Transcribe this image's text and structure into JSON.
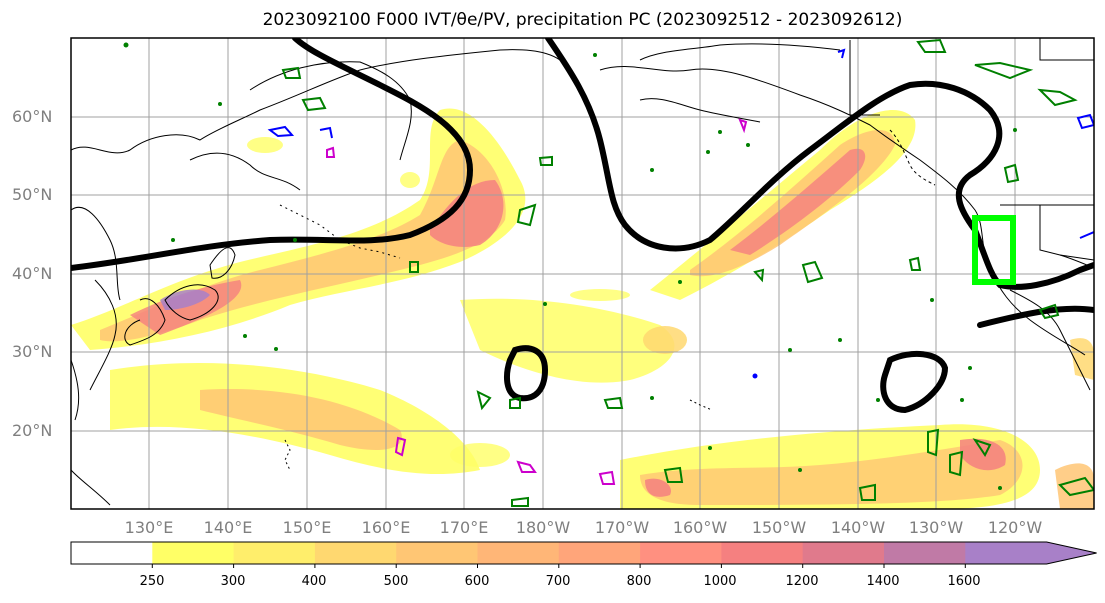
{
  "title": "2023092100 F000 IVT/θe/PV, precipitation PC (2023092512 - 2023092612)",
  "map": {
    "lat_labels": [
      "60°N",
      "50°N",
      "40°N",
      "30°N",
      "20°N"
    ],
    "lon_labels": [
      "130°E",
      "140°E",
      "150°E",
      "160°E",
      "170°E",
      "180°W",
      "170°W",
      "160°W",
      "150°W",
      "140°W",
      "130°W",
      "120°W"
    ]
  },
  "colorbar": {
    "ticks": [
      "250",
      "300",
      "400",
      "500",
      "600",
      "700",
      "800",
      "1000",
      "1200",
      "1400",
      "1600"
    ],
    "colors": [
      "#ffff66",
      "#ffee6b",
      "#ffd870",
      "#ffc674",
      "#ffb677",
      "#ffa57a",
      "#ff9080",
      "#f58080",
      "#e07a8c",
      "#c07aa6",
      "#a880c8"
    ]
  },
  "colors": {
    "contour_black": "#000000",
    "contour_green": "#008000",
    "contour_blue": "#0000ff",
    "contour_magenta": "#cc00cc",
    "box": "#00ff00",
    "grid": "#a0a0a0"
  }
}
